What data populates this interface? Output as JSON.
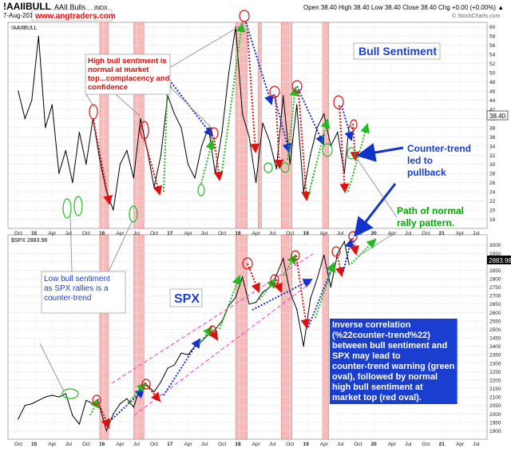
{
  "header": {
    "symbol": "!AAIIBULL",
    "name": "AAII Bulls",
    "exchange": "INDX",
    "date": "7-Aug-2019",
    "ohlc": "Open 38.40  High 38.40  Low 38.40  Close 38.40  Chg +0.00 (+0.00%) ▲",
    "source": "© StockCharts.com",
    "website": "www.angtraders.com"
  },
  "chart_data": [
    {
      "type": "line",
      "panel_label": "!AAIIBULL",
      "title": "Bull Sentiment",
      "last_value_label": "38.40",
      "ylim": [
        16,
        61
      ],
      "y_ticks": [
        18,
        20,
        22,
        24,
        26,
        28,
        30,
        32,
        34,
        36,
        38,
        40,
        42,
        44,
        46,
        48,
        50,
        52,
        54,
        56,
        58,
        60
      ],
      "x_ticks": [
        "Oct",
        "15",
        "Apr",
        "Jul",
        "Oct",
        "16",
        "Apr",
        "Jul",
        "Oct",
        "17",
        "Apr",
        "Jul",
        "Oct",
        "18",
        "Apr",
        "Jul",
        "Oct",
        "19",
        "Apr",
        "Jul",
        "Oct",
        "20",
        "Apr",
        "Jul",
        "Oct",
        "21",
        "Apr",
        "Jul"
      ],
      "series": [
        {
          "x": [
            2014.75,
            2014.85,
            2014.95,
            2015.05,
            2015.15,
            2015.25,
            2015.35,
            2015.45,
            2015.55,
            2015.65,
            2015.75,
            2015.85,
            2015.95,
            2016.05,
            2016.15,
            2016.25,
            2016.35,
            2016.45,
            2016.55,
            2016.65,
            2016.75,
            2016.85,
            2016.95,
            2017.05,
            2017.15,
            2017.25,
            2017.35,
            2017.45,
            2017.55,
            2017.65,
            2017.75,
            2017.85,
            2017.95,
            2018.05,
            2018.15,
            2018.25,
            2018.35,
            2018.45,
            2018.55,
            2018.65,
            2018.75,
            2018.85,
            2018.95,
            2019.05,
            2019.15,
            2019.25,
            2019.35,
            2019.45,
            2019.55,
            2019.62
          ],
          "values": [
            46,
            40,
            44,
            58,
            38,
            43,
            28,
            33,
            26,
            37,
            30,
            40,
            31,
            24,
            20,
            30,
            33,
            27,
            40,
            33,
            25,
            32,
            45,
            41,
            38,
            30,
            27,
            34,
            38,
            28,
            37,
            50,
            60,
            41,
            36,
            26,
            39,
            35,
            29,
            45,
            30,
            43,
            24,
            32,
            38,
            41,
            34,
            37,
            28,
            38.4
          ]
        }
      ],
      "bands": [
        [
          2015.95,
          2016.08
        ],
        [
          2016.45,
          2016.6
        ],
        [
          2017.95,
          2018.12
        ],
        [
          2018.28,
          2018.33
        ],
        [
          2018.62,
          2018.78
        ],
        [
          2019.23,
          2019.32
        ]
      ]
    },
    {
      "type": "line",
      "panel_label": "$SPX 2883.98",
      "title": "SPX",
      "last_value_label": "2883.98",
      "ylim": [
        1850,
        3060
      ],
      "y_ticks": [
        1900,
        1950,
        2000,
        2050,
        2100,
        2150,
        2200,
        2250,
        2300,
        2350,
        2400,
        2450,
        2500,
        2550,
        2600,
        2650,
        2700,
        2750,
        2800,
        2850,
        2900,
        2950,
        3000
      ],
      "x_ticks": [
        "Oct",
        "15",
        "Apr",
        "Jul",
        "Oct",
        "16",
        "Apr",
        "Jul",
        "Oct",
        "17",
        "Apr",
        "Jul",
        "Oct",
        "18",
        "Apr",
        "Jul",
        "Oct",
        "19",
        "Apr",
        "Jul",
        "Oct",
        "20",
        "Apr",
        "Jul",
        "Oct",
        "21",
        "Apr",
        "Jul"
      ],
      "series": [
        {
          "x": [
            2014.75,
            2014.85,
            2014.95,
            2015.05,
            2015.15,
            2015.25,
            2015.35,
            2015.45,
            2015.55,
            2015.65,
            2015.75,
            2015.85,
            2015.95,
            2016.05,
            2016.15,
            2016.25,
            2016.35,
            2016.45,
            2016.55,
            2016.65,
            2016.75,
            2016.85,
            2016.95,
            2017.05,
            2017.15,
            2017.25,
            2017.35,
            2017.45,
            2017.55,
            2017.65,
            2017.75,
            2017.85,
            2017.95,
            2018.05,
            2018.15,
            2018.25,
            2018.35,
            2018.45,
            2018.55,
            2018.65,
            2018.75,
            2018.85,
            2018.95,
            2019.05,
            2019.15,
            2019.25,
            2019.35,
            2019.45,
            2019.55,
            2019.62
          ],
          "values": [
            1970,
            2050,
            2060,
            2080,
            2100,
            2110,
            2100,
            2120,
            1990,
            1940,
            2080,
            2060,
            2040,
            1900,
            2000,
            2060,
            2090,
            2040,
            2160,
            2170,
            2130,
            2190,
            2270,
            2290,
            2360,
            2350,
            2400,
            2430,
            2470,
            2500,
            2550,
            2640,
            2690,
            2810,
            2650,
            2660,
            2720,
            2750,
            2820,
            2920,
            2720,
            2620,
            2400,
            2680,
            2800,
            2940,
            2750,
            2950,
            3020,
            2883.98
          ]
        }
      ],
      "bands": [
        [
          2015.95,
          2016.08
        ],
        [
          2016.45,
          2016.6
        ],
        [
          2017.95,
          2018.12
        ],
        [
          2018.62,
          2018.78
        ],
        [
          2019.23,
          2019.32
        ]
      ]
    }
  ],
  "annotations": {
    "high_sentiment": "High bull sentiment is normal at market top...complacency and confidence",
    "low_sentiment": "Low bull sentiment as SPX rallies is a counter-trend",
    "counter_trend": "Counter-trend led to pullback",
    "normal_rally": "Path of normal rally pattern.",
    "inverse_correlation": "Inverse correlation (%22counter-trend%22) between bull sentiment and SPX may lead to counter-trend warning (green oval), followed by normal high bull sentiment at market top (red oval)."
  },
  "colors": {
    "band_fill": "#f4b0b0",
    "band_stroke": "#e07070",
    "bull_title": "#1a3fd0",
    "red_text": "#e01010",
    "green_text": "#00aa00",
    "blue_text": "#1a3fd0",
    "green_arrow": "#22bb22",
    "red_arrow": "#dd1111",
    "blue_arrow": "#1133cc",
    "trend_channel": "#ff33cc"
  }
}
